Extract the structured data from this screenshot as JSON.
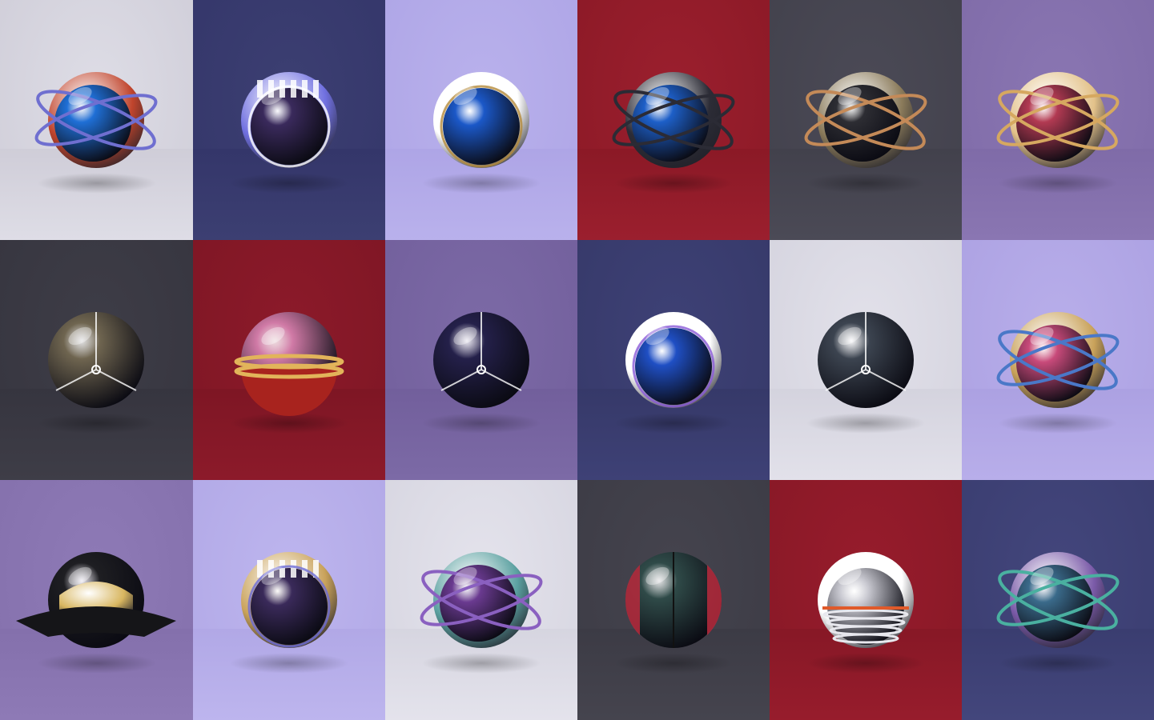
{
  "gallery": {
    "tiles": [
      {
        "name": "orbit-rings-blue-copper-sphere",
        "bg": "#dedde6",
        "floor": "#cfcdd8",
        "sphere": "#1f6fd6",
        "accent": "#c0442c",
        "ring": "#6f6fd0",
        "variant": "rings"
      },
      {
        "name": "visor-purple-sphere",
        "bg": "#3c3f72",
        "floor": "#34366a",
        "sphere": "#3a2a5c",
        "accent": "#7070e0",
        "ring": "#ffffff",
        "variant": "visor"
      },
      {
        "name": "eye-blue-white-sphere",
        "bg": "#b9b1ec",
        "floor": "#aea5e6",
        "sphere": "#1b58c8",
        "accent": "#ffffff",
        "ring": "#b48a3a",
        "variant": "eye"
      },
      {
        "name": "cage-rings-blue-sphere",
        "bg": "#9b1f2e",
        "floor": "#8b1926",
        "sphere": "#1d5fc8",
        "accent": "#2c2c36",
        "ring": "#2b2b35",
        "variant": "rings"
      },
      {
        "name": "rings-copper-dark-sphere",
        "bg": "#4b4a56",
        "floor": "#42414c",
        "sphere": "#2d2d33",
        "accent": "#8a7a5a",
        "ring": "#c48a58",
        "variant": "rings"
      },
      {
        "name": "striped-gold-rings-sphere",
        "bg": "#8a76b2",
        "floor": "#7f6ba8",
        "sphere": "#b23a52",
        "accent": "#e3c28a",
        "ring": "#d6a860",
        "variant": "rings"
      },
      {
        "name": "weathered-bronze-sphere",
        "bg": "#3e3d47",
        "floor": "#36353f",
        "sphere": "#6f6550",
        "accent": "#ffffff",
        "ring": "#ffffff",
        "variant": "tri"
      },
      {
        "name": "pink-gold-band-sphere",
        "bg": "#8c1a2a",
        "floor": "#7e1624",
        "sphere": "#d07aa6",
        "accent": "#a8231e",
        "ring": "#e2b45a",
        "variant": "band"
      },
      {
        "name": "purple-marble-sphere",
        "bg": "#7c6aa6",
        "floor": "#725f9c",
        "sphere": "#24204a",
        "accent": "#5b3cc8",
        "ring": "#ffffff",
        "variant": "tri"
      },
      {
        "name": "white-shell-blue-core-sphere",
        "bg": "#3e4176",
        "floor": "#363969",
        "sphere": "#1f4fc4",
        "accent": "#ffffff",
        "ring": "#8a5ad8",
        "variant": "eye"
      },
      {
        "name": "chrome-blue-speckle-sphere",
        "bg": "#e2e1ea",
        "floor": "#d4d3de",
        "sphere": "#3c4450",
        "accent": "#3a9ad8",
        "ring": "#ffffff",
        "variant": "tri"
      },
      {
        "name": "gold-mesh-iridescent-sphere",
        "bg": "#b8aeea",
        "floor": "#aca1e2",
        "sphere": "#c84a7a",
        "accent": "#c9a25a",
        "ring": "#4a78c8",
        "variant": "rings"
      },
      {
        "name": "black-gold-winged-sphere",
        "bg": "#8e7ab6",
        "floor": "#8470ac",
        "sphere": "#1e1e22",
        "accent": "#d8b660",
        "ring": "#1a1a1e",
        "variant": "wing"
      },
      {
        "name": "gold-mesh-visor-sphere",
        "bg": "#bdb5ee",
        "floor": "#b1a8e6",
        "sphere": "#3a2a5a",
        "accent": "#c9a25a",
        "ring": "#6c6cd8",
        "variant": "visor"
      },
      {
        "name": "iridescent-orbit-sphere",
        "bg": "#e4e3ec",
        "floor": "#d6d5e0",
        "sphere": "#6a3a90",
        "accent": "#5aa0a0",
        "ring": "#8a60c0",
        "variant": "rings"
      },
      {
        "name": "green-red-split-sphere",
        "bg": "#45444e",
        "floor": "#3c3b45",
        "sphere": "#2f4a48",
        "accent": "#b02a3c",
        "ring": "#2b2b35",
        "variant": "split"
      },
      {
        "name": "white-chrome-coil-sphere",
        "bg": "#971c2c",
        "floor": "#871826",
        "sphere": "#c8c8d0",
        "accent": "#ffffff",
        "ring": "#e05a2a",
        "variant": "coil"
      },
      {
        "name": "iridescent-blade-orbit-sphere",
        "bg": "#43467c",
        "floor": "#3a3d70",
        "sphere": "#3a6a8a",
        "accent": "#7a5aa8",
        "ring": "#4ab0a0",
        "variant": "rings"
      }
    ]
  }
}
